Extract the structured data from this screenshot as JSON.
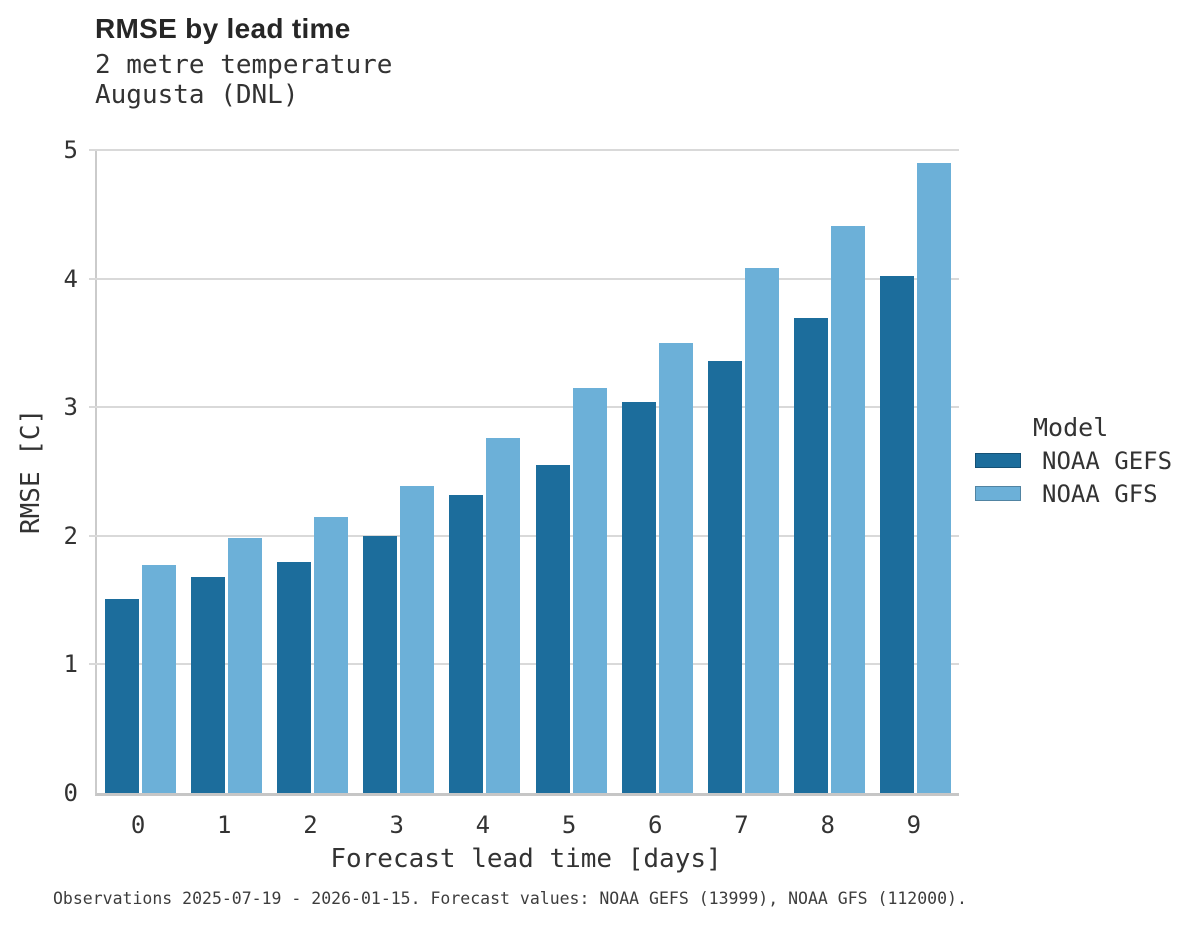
{
  "footer_note": "Observations 2025-07-19 - 2026-01-15. Forecast values: NOAA GEFS (13999), NOAA GFS (112000).",
  "chart_data": {
    "type": "bar",
    "title": "RMSE by lead time",
    "subtitle_lines": [
      "2 metre temperature",
      "Augusta (DNL)"
    ],
    "xlabel": "Forecast lead time [days]",
    "ylabel": "RMSE [C]",
    "categories": [
      "0",
      "1",
      "2",
      "3",
      "4",
      "5",
      "6",
      "7",
      "8",
      "9"
    ],
    "series": [
      {
        "name": "NOAA GEFS",
        "color": "#1C6D9C",
        "values": [
          1.51,
          1.68,
          1.8,
          2.0,
          2.32,
          2.55,
          3.04,
          3.36,
          3.69,
          4.02
        ]
      },
      {
        "name": "NOAA GFS",
        "color": "#6CB0D8",
        "values": [
          1.77,
          1.98,
          2.15,
          2.39,
          2.76,
          3.15,
          3.5,
          4.08,
          4.41,
          4.9
        ]
      }
    ],
    "ylim": [
      0,
      5
    ],
    "yticks": [
      0,
      1,
      2,
      3,
      4,
      5
    ],
    "grid": "horizontal",
    "legend_title": "Model",
    "legend_position": "right",
    "grid_color": "#d9d9d9",
    "axis_color": "#c6c6c6"
  }
}
